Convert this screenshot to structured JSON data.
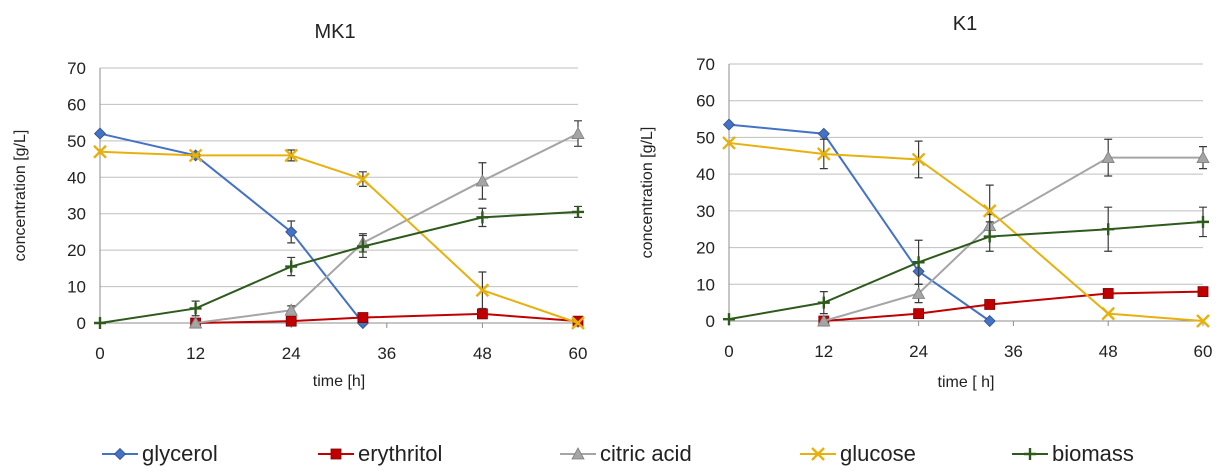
{
  "chart_data": [
    {
      "type": "line",
      "title": "MK1",
      "xlabel": "time [h]",
      "ylabel": "concentration [g/L]",
      "xlim": [
        0,
        60
      ],
      "ylim": [
        0,
        70
      ],
      "xticks": [
        0,
        12,
        24,
        36,
        48,
        60
      ],
      "yticks": [
        0,
        10,
        20,
        30,
        40,
        50,
        60,
        70
      ],
      "grid": "horizontal",
      "series": [
        {
          "name": "glycerol",
          "color": "#4472c4",
          "marker": "diamond",
          "x": [
            0,
            12,
            24,
            33
          ],
          "y": [
            52,
            46,
            25,
            0
          ],
          "err": [
            0,
            0,
            3,
            0
          ]
        },
        {
          "name": "erythritol",
          "color": "#c00000",
          "marker": "square",
          "x": [
            12,
            24,
            33,
            48,
            60
          ],
          "y": [
            0,
            0.5,
            1.5,
            2.5,
            0.5
          ],
          "err": [
            0,
            0,
            0,
            0,
            0
          ]
        },
        {
          "name": "citric acid",
          "color": "#a5a5a5",
          "marker": "triangle",
          "x": [
            12,
            24,
            33,
            48,
            60
          ],
          "y": [
            0,
            3.5,
            22,
            39,
            52
          ],
          "err": [
            0,
            1.2,
            2.5,
            5,
            3.5
          ]
        },
        {
          "name": "glucose",
          "color": "#e7b10d",
          "marker": "x",
          "x": [
            0,
            12,
            24,
            33,
            48,
            60
          ],
          "y": [
            47,
            46,
            46,
            39.5,
            9,
            0
          ],
          "err": [
            0,
            0,
            1.5,
            2,
            5,
            0
          ]
        },
        {
          "name": "biomass",
          "color": "#2e5a1c",
          "marker": "plus",
          "x": [
            0,
            12,
            24,
            33,
            48,
            60
          ],
          "y": [
            0,
            4,
            15.5,
            21,
            29,
            30.5
          ],
          "err": [
            0,
            2,
            2.5,
            3,
            2.5,
            1.5
          ]
        }
      ]
    },
    {
      "type": "line",
      "title": "K1",
      "xlabel": "time [ h]",
      "ylabel": "concentration [g/L]",
      "xlim": [
        0,
        60
      ],
      "ylim": [
        0,
        70
      ],
      "xticks": [
        0,
        12,
        24,
        36,
        48,
        60
      ],
      "yticks": [
        0,
        10,
        20,
        30,
        40,
        50,
        60,
        70
      ],
      "grid": "horizontal",
      "series": [
        {
          "name": "glycerol",
          "color": "#4472c4",
          "marker": "diamond",
          "x": [
            0,
            12,
            24,
            33
          ],
          "y": [
            53.5,
            51,
            13.5,
            0
          ],
          "err": [
            0,
            0,
            0,
            0
          ]
        },
        {
          "name": "erythritol",
          "color": "#c00000",
          "marker": "square",
          "x": [
            12,
            24,
            33,
            48,
            60
          ],
          "y": [
            0,
            2,
            4.5,
            7.5,
            8
          ],
          "err": [
            0,
            0,
            0,
            0,
            0
          ]
        },
        {
          "name": "citric acid",
          "color": "#a5a5a5",
          "marker": "triangle",
          "x": [
            12,
            24,
            33,
            48,
            60
          ],
          "y": [
            0,
            7.5,
            26,
            44.5,
            44.5
          ],
          "err": [
            0,
            2.5,
            3,
            5,
            3
          ]
        },
        {
          "name": "glucose",
          "color": "#e7b10d",
          "marker": "x",
          "x": [
            0,
            12,
            24,
            33,
            48,
            60
          ],
          "y": [
            48.5,
            45.5,
            44,
            30,
            2,
            0
          ],
          "err": [
            0,
            4,
            5,
            7,
            0,
            0
          ]
        },
        {
          "name": "biomass",
          "color": "#2e5a1c",
          "marker": "plus",
          "x": [
            0,
            12,
            24,
            33,
            48,
            60
          ],
          "y": [
            0.5,
            5,
            16,
            23,
            25,
            27
          ],
          "err": [
            0,
            3,
            6,
            4,
            6,
            4
          ]
        }
      ]
    }
  ],
  "legend": {
    "position": "bottom",
    "items": [
      {
        "label": "glycerol",
        "color": "#4472c4",
        "marker": "diamond"
      },
      {
        "label": "erythritol",
        "color": "#c00000",
        "marker": "square"
      },
      {
        "label": "citric acid",
        "color": "#a5a5a5",
        "marker": "triangle"
      },
      {
        "label": "glucose",
        "color": "#e7b10d",
        "marker": "x"
      },
      {
        "label": "biomass",
        "color": "#2e5a1c",
        "marker": "plus"
      }
    ]
  }
}
